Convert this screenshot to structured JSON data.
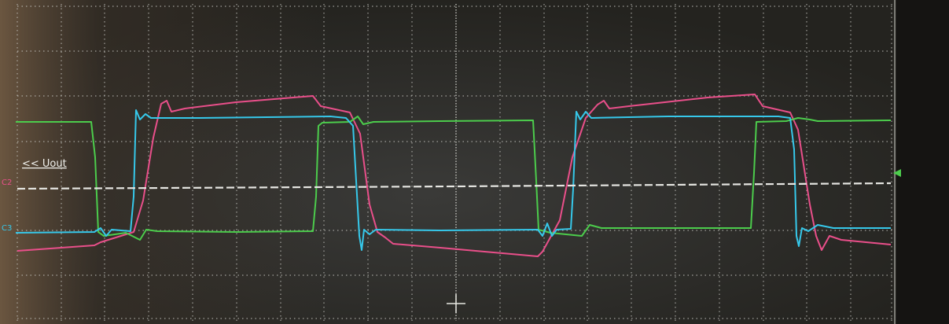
{
  "labels": {
    "reference": "<< Uout",
    "channel_2": "C2",
    "channel_3": "C3"
  }
}
